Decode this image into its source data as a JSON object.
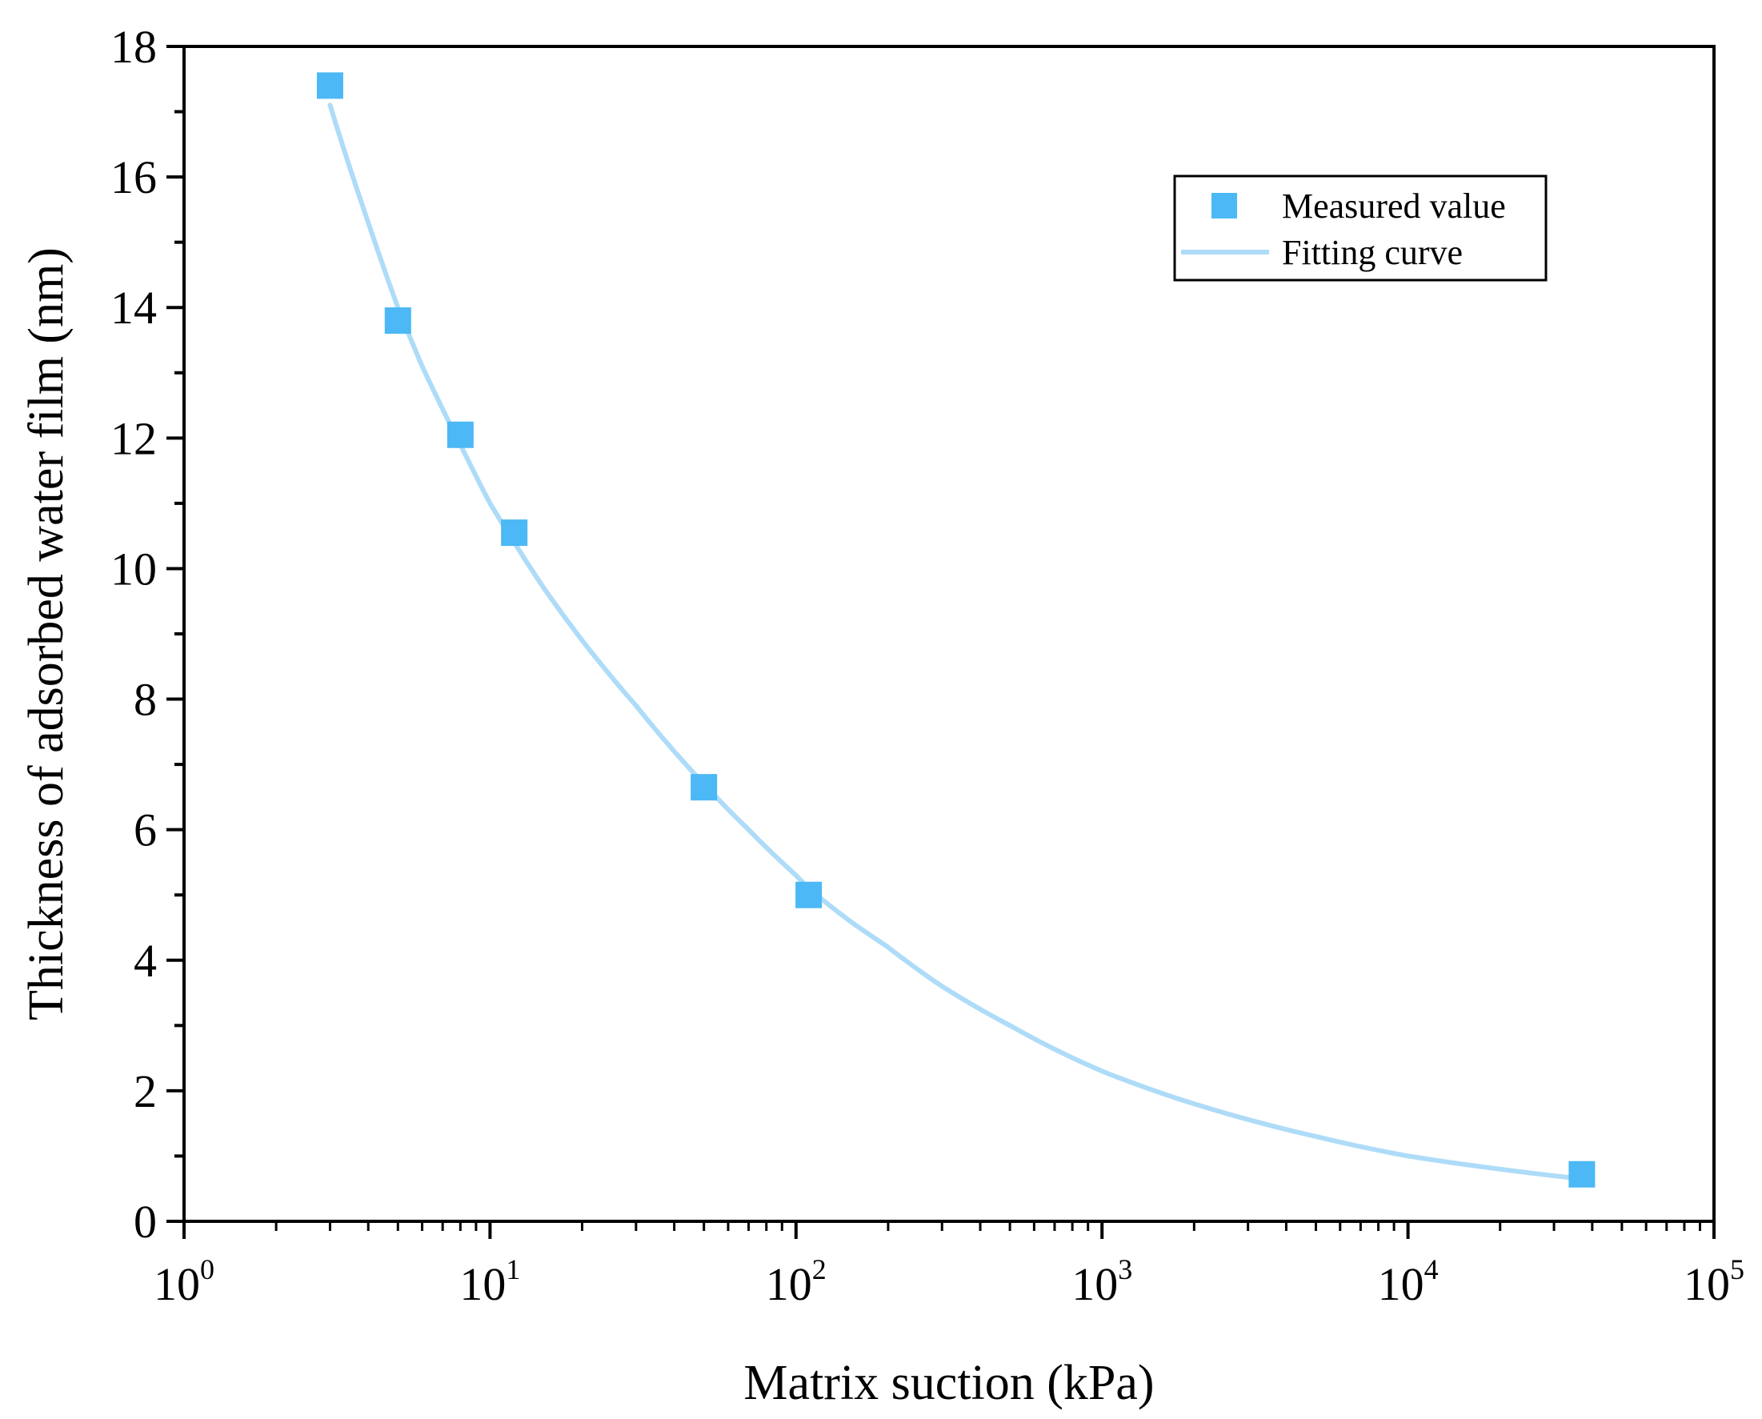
{
  "chart_data": {
    "type": "scatter",
    "title": "",
    "xlabel": "Matrix suction (kPa)",
    "ylabel": "Thickness of adsorbed water film (nm)",
    "xscale": "log",
    "xlim": [
      1,
      100000
    ],
    "ylim": [
      0,
      18
    ],
    "x_ticks": [
      {
        "base": "10",
        "exp": "0"
      },
      {
        "base": "10",
        "exp": "1"
      },
      {
        "base": "10",
        "exp": "2"
      },
      {
        "base": "10",
        "exp": "3"
      },
      {
        "base": "10",
        "exp": "4"
      },
      {
        "base": "10",
        "exp": "5"
      }
    ],
    "y_ticks": [
      "0",
      "2",
      "4",
      "6",
      "8",
      "10",
      "12",
      "14",
      "16",
      "18"
    ],
    "grid": false,
    "legend": {
      "position": "top-right",
      "entries": [
        {
          "label": "Measured value",
          "kind": "marker"
        },
        {
          "label": "Fitting curve",
          "kind": "line"
        }
      ]
    },
    "series": [
      {
        "name": "Measured value",
        "kind": "scatter",
        "marker": "square",
        "color": "#4cb8f5",
        "x": [
          3,
          5,
          8,
          12,
          50,
          110,
          37000
        ],
        "y": [
          17.4,
          13.8,
          12.05,
          10.55,
          6.65,
          5.0,
          0.72
        ]
      },
      {
        "name": "Fitting curve",
        "kind": "line",
        "color": "#aedcf8",
        "x": [
          3,
          4,
          5,
          6,
          8,
          10,
          12,
          15,
          20,
          30,
          40,
          50,
          70,
          100,
          110,
          150,
          200,
          300,
          500,
          1000,
          2000,
          5000,
          10000,
          20000,
          37000
        ],
        "y": [
          17.1,
          15.3,
          14.0,
          13.1,
          11.9,
          11.0,
          10.4,
          9.7,
          8.9,
          7.9,
          7.2,
          6.7,
          6.0,
          5.3,
          5.1,
          4.6,
          4.2,
          3.6,
          3.0,
          2.3,
          1.8,
          1.3,
          1.0,
          0.8,
          0.65
        ]
      }
    ]
  }
}
